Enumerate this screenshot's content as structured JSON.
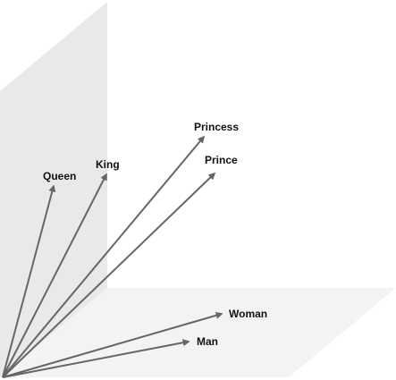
{
  "diagram": {
    "colors": {
      "back_plane": "#e9e9e9",
      "floor_plane": "#f3f3f3",
      "arrow": "#666666",
      "label": "#111111"
    },
    "vectors": [
      {
        "id": "queen",
        "label": "Queen"
      },
      {
        "id": "king",
        "label": "King"
      },
      {
        "id": "princess",
        "label": "Princess"
      },
      {
        "id": "prince",
        "label": "Prince"
      },
      {
        "id": "woman",
        "label": "Woman"
      },
      {
        "id": "man",
        "label": "Man"
      }
    ]
  }
}
